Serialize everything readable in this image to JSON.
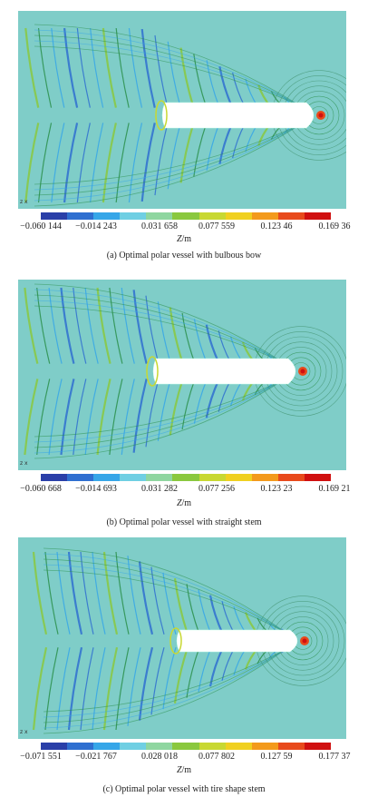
{
  "panels": [
    {
      "caption": "(a) Optimal polar vessel with bulbous bow",
      "axis_tag": "z  x",
      "colorbar_ticks": [
        "−0.060 144",
        "−0.014 243",
        "0.031 658",
        "0.077 559",
        "0.123 46",
        "0.169 36"
      ],
      "unit_var": "Z",
      "unit_rest": "/m"
    },
    {
      "caption": "(b) Optimal polar vessel with straight stem",
      "axis_tag": "z  x",
      "colorbar_ticks": [
        "−0.060 668",
        "−0.014 693",
        "0.031 282",
        "0.077 256",
        "0.123 23",
        "0.169 21"
      ],
      "unit_var": "Z",
      "unit_rest": "/m"
    },
    {
      "caption": "(c) Optimal polar vessel with tire shape stem",
      "axis_tag": "z  x",
      "colorbar_ticks": [
        "−0.071 551",
        "−0.021 767",
        "0.028 018",
        "0.077 802",
        "0.127 59",
        "0.177 37"
      ],
      "unit_var": "Z",
      "unit_rest": "/m"
    }
  ],
  "colors": {
    "background": "#7fcdc8",
    "hull": "#ffffff",
    "colormap": [
      "#2a3fa8",
      "#2f6fd0",
      "#36a6e8",
      "#6fcfe3",
      "#8fd6a0",
      "#8ac83e",
      "#c8d832",
      "#f0d020",
      "#f39a1c",
      "#e84a1c",
      "#d01010"
    ]
  }
}
